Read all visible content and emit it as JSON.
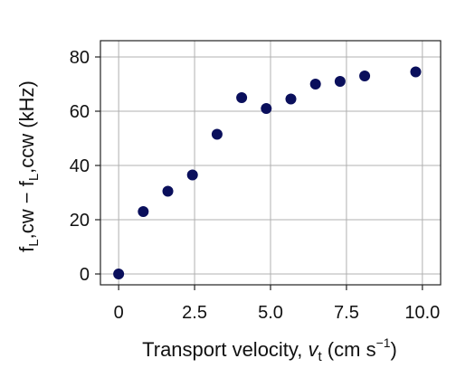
{
  "chart_data": {
    "type": "scatter",
    "xlabel": "Transport velocity, ",
    "xlabel_var": "v",
    "xlabel_var_sub": "t",
    "xlabel_unit": " (cm s",
    "xlabel_unit_sup": "−1",
    "xlabel_tail": ")",
    "ylabel": "f",
    "ylabel_sub1": "L",
    "ylabel_mid": ",cw − f",
    "ylabel_sub2": "L",
    "ylabel_tail": ",ccw (kHz)",
    "xlim": [
      -0.6,
      10.6
    ],
    "ylim": [
      -4,
      86
    ],
    "xticks": [
      0,
      2.5,
      5.0,
      7.5,
      10.0
    ],
    "xtick_labels": [
      "0",
      "2.5",
      "5.0",
      "7.5",
      "10.0"
    ],
    "yticks": [
      0,
      20,
      40,
      60,
      80
    ],
    "ytick_labels": [
      "0",
      "20",
      "40",
      "60",
      "80"
    ],
    "grid": true,
    "marker_color": "#0a0f5c",
    "grid_color": "#b0b0b0",
    "series": [
      {
        "x": [
          0,
          0.81,
          1.62,
          2.43,
          3.24,
          4.05,
          4.86,
          5.67,
          6.48,
          7.29,
          8.1,
          9.78
        ],
        "y": [
          0,
          23,
          30.5,
          36.5,
          51.5,
          65,
          61,
          64.5,
          70,
          71,
          73,
          74.5
        ]
      }
    ]
  }
}
